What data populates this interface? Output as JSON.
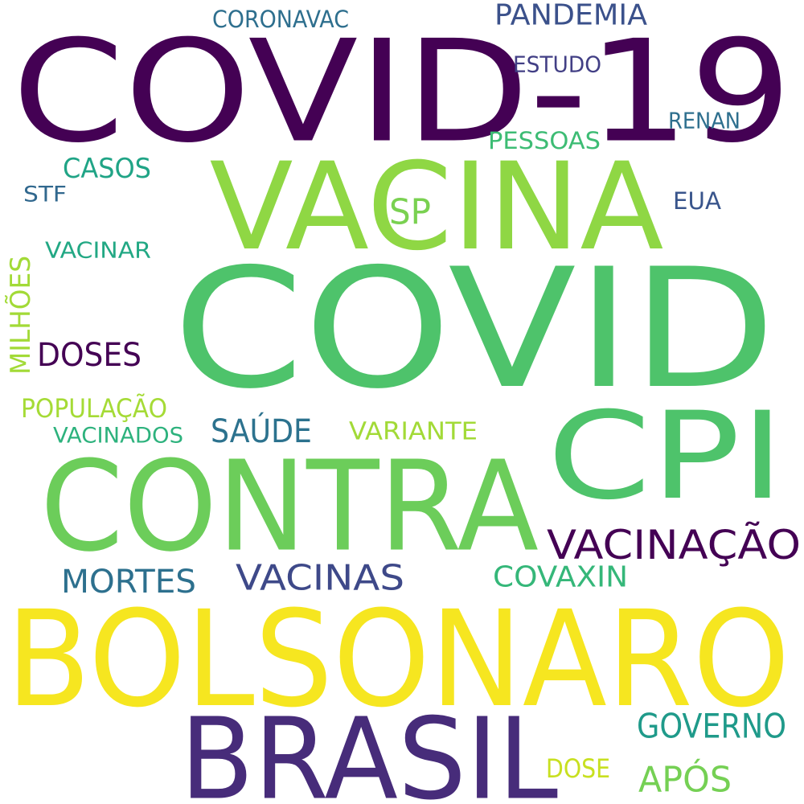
{
  "words": [
    {
      "text": "COVID-19",
      "color": "#440154"
    },
    {
      "text": "VACINA",
      "color": "#8fd744"
    },
    {
      "text": "COVID",
      "color": "#4ec36b"
    },
    {
      "text": "CONTRA",
      "color": "#6ccd5a"
    },
    {
      "text": "CPI",
      "color": "#4ec36b"
    },
    {
      "text": "BOLSONARO",
      "color": "#f6e620"
    },
    {
      "text": "BRASIL",
      "color": "#472c7a"
    },
    {
      "text": "CORONAVAC",
      "color": "#2e6f8e"
    },
    {
      "text": "PANDEMIA",
      "color": "#3b518b"
    },
    {
      "text": "ESTUDO",
      "color": "#423f85"
    },
    {
      "text": "RENAN",
      "color": "#2e6f8e"
    },
    {
      "text": "PESSOAS",
      "color": "#3dbc74"
    },
    {
      "text": "CASOS",
      "color": "#20a486"
    },
    {
      "text": "STF",
      "color": "#31688e"
    },
    {
      "text": "SP",
      "color": "#7ad151"
    },
    {
      "text": "EUA",
      "color": "#39558c"
    },
    {
      "text": "VACINAR",
      "color": "#22a884"
    },
    {
      "text": "MILHÕES",
      "color": "#a2da37"
    },
    {
      "text": "DOSES",
      "color": "#440154"
    },
    {
      "text": "POPULAÇÃO",
      "color": "#a5db36"
    },
    {
      "text": "VACINADOS",
      "color": "#2db27d"
    },
    {
      "text": "SAÚDE",
      "color": "#2c728e"
    },
    {
      "text": "VARIANTE",
      "color": "#a2da37"
    },
    {
      "text": "VACINAÇÃO",
      "color": "#440154"
    },
    {
      "text": "MORTES",
      "color": "#2d708e"
    },
    {
      "text": "VACINAS",
      "color": "#3e4989"
    },
    {
      "text": "COVAXIN",
      "color": "#35b779"
    },
    {
      "text": "GOVERNO",
      "color": "#1f9a8a"
    },
    {
      "text": "DOSE",
      "color": "#c8e020"
    },
    {
      "text": "APÓS",
      "color": "#75d054"
    }
  ]
}
